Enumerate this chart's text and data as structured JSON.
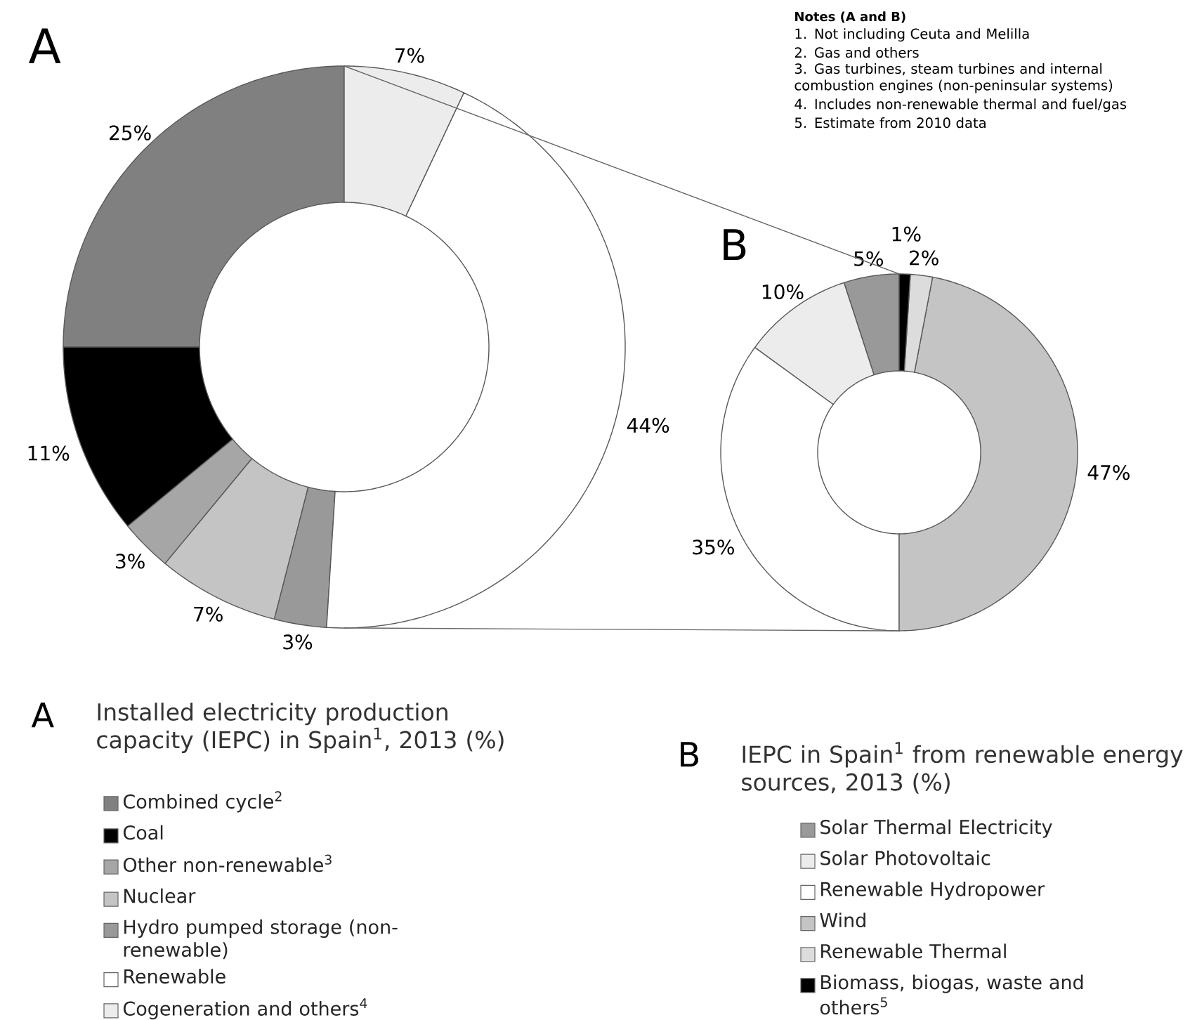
{
  "chart_data": [
    {
      "type": "donut",
      "title": "Installed electricity production capacity (IEPC) in Spain$^{1}$, 2013 (%)",
      "categories": [
        "Combined cycle$^{2}$",
        "Coal",
        "Other non-renewable$^{3}$",
        "Nuclear",
        "Hydro pumped storage (non-renewable)",
        "Renewable",
        "Cogeneration and others$^{4}$"
      ],
      "values": [
        25,
        11,
        3,
        7,
        3,
        44,
        7
      ],
      "value_labels": [
        "25%",
        "11%",
        "3%",
        "7%",
        "3%",
        "44%",
        "7%"
      ],
      "colors": [
        "#808080",
        "#000000",
        "#a6a6a6",
        "#c4c4c4",
        "#999999",
        "#ffffff",
        "#ececec"
      ],
      "legend": "bottom",
      "annotations": [
        "A",
        "A"
      ]
    },
    {
      "type": "donut",
      "title": "IEPC in Spain$^{1}$ from renewable energy sources, 2013 (%)",
      "categories": [
        "Solar Thermal Electricity",
        "Solar Photovoltaic",
        "Renewable Hydropower",
        "Wind",
        "Renewable Thermal",
        "Biomass, biogas, waste and others$^{5}$"
      ],
      "values": [
        5,
        10,
        35,
        47,
        2,
        1
      ],
      "value_labels": [
        "5%",
        "10%",
        "35%",
        "47%",
        "2%",
        "1%"
      ],
      "colors": [
        "#999999",
        "#ececec",
        "#ffffff",
        "#c4c4c4",
        "#dcdcdc",
        "#000000"
      ],
      "legend": "bottom",
      "annotations": [
        "B",
        "B",
        "Notes (A and B)",
        "1. Not including Ceuta and Melilla",
        "2. Gas and others",
        "3. Gas turbines, steam turbines and internal combustion engines (non-peninsular systems)",
        "4. Includes non-renewable thermal and fuel/gas",
        "5. Estimate from 2010 data"
      ]
    }
  ]
}
